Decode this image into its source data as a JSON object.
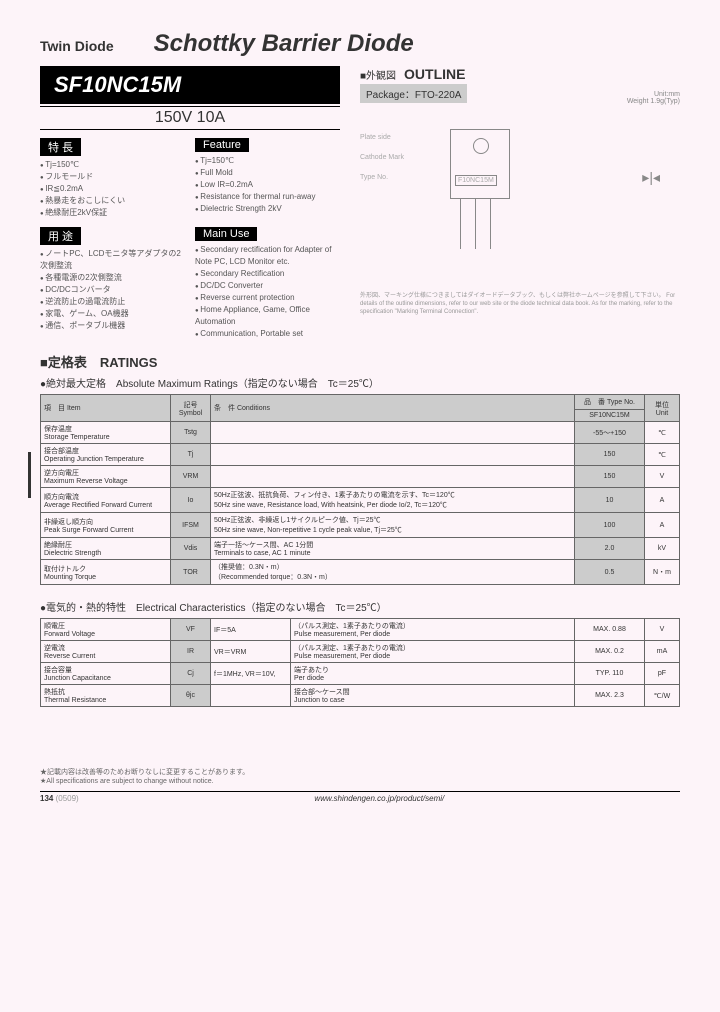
{
  "header": {
    "category": "Twin Diode",
    "title": "Schottky Barrier Diode",
    "partNumber": "SF10NC15M",
    "rating": "150V 10A"
  },
  "features": {
    "jp_label": "特 長",
    "en_label": "Feature",
    "jp": [
      "Tj=150℃",
      "フルモールド",
      "IR≦0.2mA",
      "熱暴走をおこしにくい",
      "絶縁耐圧2kV保証"
    ],
    "en": [
      "Tj=150℃",
      "Full Mold",
      "Low IR=0.2mA",
      "Resistance for thermal run-away",
      "Dielectric Strength 2kV"
    ]
  },
  "uses": {
    "jp_label": "用 途",
    "en_label": "Main Use",
    "jp": [
      "ノートPC、LCDモニタ等アダプタの2次側整流",
      "各種電源の2次側整流",
      "DC/DCコンバータ",
      "逆流防止の過電流防止",
      "家電、ゲーム、OA機器",
      "通信、ポータブル機器"
    ],
    "en": [
      "Secondary rectification for Adapter of Note PC, LCD Monitor etc.",
      "Secondary Rectification",
      "DC/DC Converter",
      "Reverse current protection",
      "Home Appliance, Game, Office Automation",
      "Communication, Portable set"
    ]
  },
  "outline": {
    "jp": "外観図",
    "en": "OUTLINE",
    "package_label": "Package：",
    "package": "FTO-220A",
    "unit": "Unit:mm",
    "weight": "Weight 1.9g(Typ)",
    "chip_label": "F10NC15M",
    "note": "外形図、マーキング仕様につきましてはダイオードデータブック、もしくは弊社ホームページを参照して下さい。\nFor details of the outline dimensions, refer to our web site or the diode technical data book. As for the marking, refer to the specification \"Marking Terminal Connection\"."
  },
  "ratings": {
    "section": "■定格表　RATINGS",
    "abs_title": "●絶対最大定格　Absolute Maximum Ratings（指定のない場合　Tc＝25℃）",
    "headers": {
      "item": "項　目\nItem",
      "symbol": "記号\nSymbol",
      "conditions": "条　件\nConditions",
      "typeno": "品　番\nType No.",
      "type": "SF10NC15M",
      "unit": "単位\nUnit"
    },
    "rows": [
      {
        "item_jp": "保存温度",
        "item_en": "Storage Temperature",
        "sym": "Tstg",
        "cond": "",
        "val": "-55～+150",
        "unit": "℃"
      },
      {
        "item_jp": "接合部温度",
        "item_en": "Operating Junction Temperature",
        "sym": "Tj",
        "cond": "",
        "val": "150",
        "unit": "℃"
      },
      {
        "item_jp": "逆方向電圧",
        "item_en": "Maximum Reverse Voltage",
        "sym": "VRM",
        "cond": "",
        "val": "150",
        "unit": "V"
      },
      {
        "item_jp": "順方向電流",
        "item_en": "Average Rectified Forward Current",
        "sym": "Io",
        "cond": "50Hz正弦波、抵抗負荷、フィン付き、1素子あたりの電流を示す、Tc＝120℃\n50Hz sine wave, Resistance load, With heatsink, Per diode Io/2, Tc＝120℃",
        "val": "10",
        "unit": "A"
      },
      {
        "item_jp": "非繰返し順方向",
        "item_en": "Peak Surge Forward Current",
        "sym": "IFSM",
        "cond": "50Hz正弦波、非繰返し1サイクルピーク値、Tj＝25℃\n50Hz sine wave, Non-repetitive 1 cycle peak value, Tj＝25℃",
        "val": "100",
        "unit": "A"
      },
      {
        "item_jp": "絶縁耐圧",
        "item_en": "Dielectric Strength",
        "sym": "Vdis",
        "cond": "端子一括～ケース間、AC 1分間\nTerminals to case, AC 1 minute",
        "val": "2.0",
        "unit": "kV"
      },
      {
        "item_jp": "取付けトルク",
        "item_en": "Mounting Torque",
        "sym": "TOR",
        "cond": "（推奨値：0.3N・m）\n（Recommended torque：0.3N・m）",
        "val": "0.5",
        "unit": "N・m"
      }
    ]
  },
  "electrical": {
    "title": "●電気的・熱的特性　Electrical Characteristics（指定のない場合　Tc＝25℃）",
    "rows": [
      {
        "item_jp": "順電圧",
        "item_en": "Forward Voltage",
        "sym": "VF",
        "cond1": "IF＝5A",
        "cond2": "（パルス測定、1素子あたりの電流）\nPulse measurement, Per diode",
        "val": "MAX. 0.88",
        "unit": "V"
      },
      {
        "item_jp": "逆電流",
        "item_en": "Reverse Current",
        "sym": "IR",
        "cond1": "VR＝VRM",
        "cond2": "（パルス測定、1素子あたりの電流）\nPulse measurement, Per diode",
        "val": "MAX. 0.2",
        "unit": "mA"
      },
      {
        "item_jp": "接合容量",
        "item_en": "Junction Capacitance",
        "sym": "Cj",
        "cond1": "f＝1MHz, VR＝10V,",
        "cond2": "端子あたり\nPer diode",
        "val": "TYP. 110",
        "unit": "pF"
      },
      {
        "item_jp": "熱抵抗",
        "item_en": "Thermal Resistance",
        "sym": "θjc",
        "cond1": "",
        "cond2": "接合部～ケース間\nJunction to case",
        "val": "MAX. 2.3",
        "unit": "℃/W"
      }
    ]
  },
  "footer": {
    "note_jp": "★記載内容は改善等のためお断りなしに変更することがあります。",
    "note_en": "★All specifications are subject to change without notice.",
    "page": "134",
    "code": "(0509)",
    "url": "www.shindengen.co.jp/product/semi/"
  }
}
